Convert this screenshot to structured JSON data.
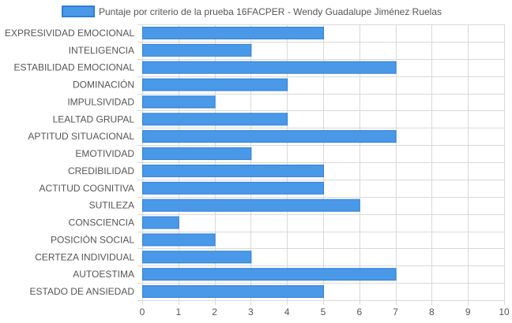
{
  "chart_data": {
    "type": "bar",
    "orientation": "horizontal",
    "series": [
      {
        "name": "Puntaje por criterio de la prueba 16FACPER - Wendy Guadalupe Jiménez Ruelas",
        "values": [
          5,
          3,
          7,
          4,
          2,
          4,
          7,
          3,
          5,
          5,
          6,
          1,
          2,
          3,
          7,
          5
        ]
      }
    ],
    "categories": [
      "EXPRESIVIDAD EMOCIONAL",
      "INTELIGENCIA",
      "ESTABILIDAD EMOCIONAL",
      "DOMINACIÓN",
      "IMPULSIVIDAD",
      "LEALTAD GRUPAL",
      "APTITUD SITUACIONAL",
      "EMOTIVIDAD",
      "CREDIBILIDAD",
      "ACTITUD COGNITIVA",
      "SUTILEZA",
      "CONSCIENCIA",
      "POSICIÓN SOCIAL",
      "CERTEZA INDIVIDUAL",
      "AUTOESTIMA",
      "ESTADO DE ANSIEDAD"
    ],
    "xlim": [
      0,
      10
    ],
    "xticks": [
      "0",
      "1",
      "2",
      "3",
      "4",
      "5",
      "6",
      "7",
      "8",
      "9",
      "10"
    ],
    "grid": true,
    "legend_position": "top",
    "title": "",
    "xlabel": "",
    "ylabel": "",
    "colors": {
      "bar_fill": "#4a98e8",
      "bar_stroke": "#2f7fd6",
      "grid": "#d9d9d9",
      "axis_text": "#555555"
    }
  }
}
